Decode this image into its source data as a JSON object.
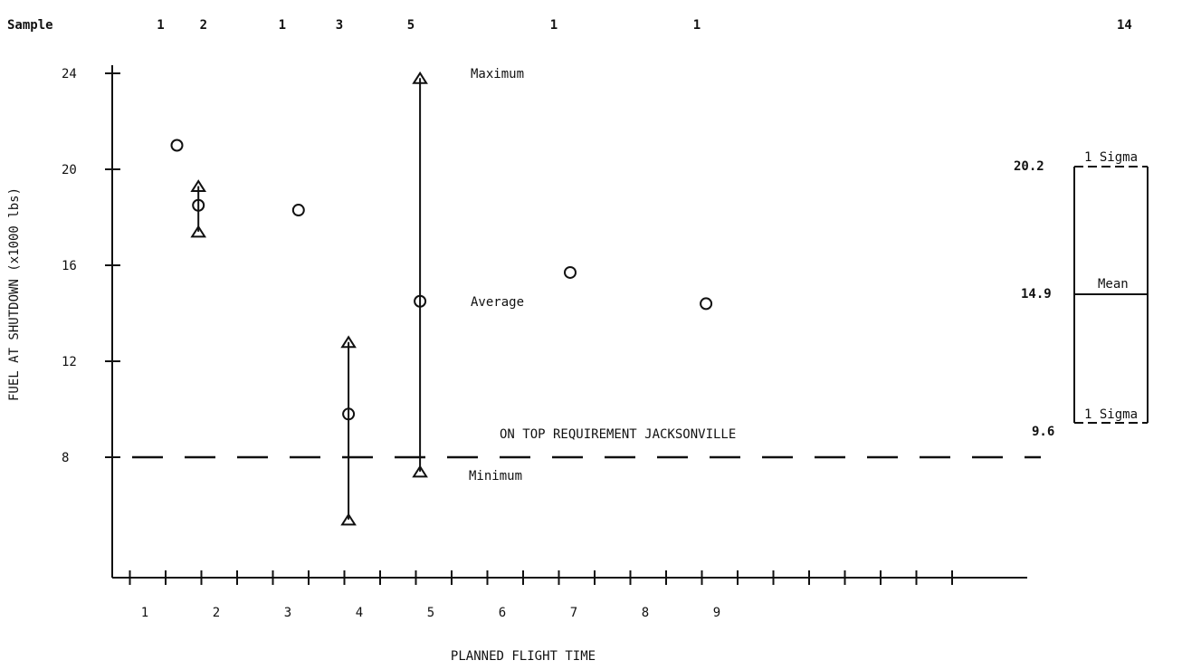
{
  "chart_data": {
    "type": "scatter",
    "title": "",
    "xlabel": "PLANNED FLIGHT TIME",
    "ylabel": "FUEL AT SHUTDOWN (x1000 lbs)",
    "xlim": [
      0,
      12.5
    ],
    "ylim": [
      0,
      24
    ],
    "x_ticks": [
      "1",
      "2",
      "3",
      "4",
      "5",
      "6",
      "7",
      "8",
      "9"
    ],
    "y_ticks": [
      "24",
      "20",
      "16",
      "12",
      "8"
    ],
    "sample_label": "Sample",
    "sample_counts": [
      {
        "x": 1.5,
        "n": "1"
      },
      {
        "x": 2.1,
        "n": "2"
      },
      {
        "x": 3.2,
        "n": "1"
      },
      {
        "x": 4.0,
        "n": "3"
      },
      {
        "x": 5.0,
        "n": "5"
      },
      {
        "x": 7.0,
        "n": "1"
      },
      {
        "x": 9.0,
        "n": "1"
      }
    ],
    "sample_total": "14",
    "series": [
      {
        "name": "Average",
        "marker": "circle",
        "points": [
          {
            "x": 1.5,
            "y": 21.0
          },
          {
            "x": 1.8,
            "y": 18.5
          },
          {
            "x": 3.2,
            "y": 18.3
          },
          {
            "x": 3.9,
            "y": 9.8
          },
          {
            "x": 4.9,
            "y": 14.5
          },
          {
            "x": 7.0,
            "y": 15.7
          },
          {
            "x": 8.9,
            "y": 14.4
          }
        ]
      },
      {
        "name": "Maximum",
        "marker": "triangle",
        "points": [
          {
            "x": 1.8,
            "y": 19.3
          },
          {
            "x": 3.9,
            "y": 12.8
          },
          {
            "x": 4.9,
            "y": 23.8
          }
        ]
      },
      {
        "name": "Minimum",
        "marker": "triangle",
        "points": [
          {
            "x": 1.8,
            "y": 17.4
          },
          {
            "x": 3.9,
            "y": 5.4
          },
          {
            "x": 4.9,
            "y": 7.4
          }
        ]
      }
    ],
    "ranges": [
      {
        "x": 1.8,
        "low": 17.4,
        "high": 19.3
      },
      {
        "x": 3.9,
        "low": 5.4,
        "high": 12.8
      },
      {
        "x": 4.9,
        "low": 7.4,
        "high": 23.8
      }
    ],
    "annotations": {
      "maximum": "Maximum",
      "average": "Average",
      "minimum": "Minimum"
    },
    "reference_line": {
      "y": 8,
      "label": "ON TOP REQUIREMENT JACKSONVILLE",
      "style": "dashed"
    },
    "summary": {
      "upper": {
        "value": "20.2",
        "label": "1 Sigma"
      },
      "mean": {
        "value": "14.9",
        "label": "Mean"
      },
      "lower": {
        "value": "9.6",
        "label": "1 Sigma"
      }
    }
  }
}
